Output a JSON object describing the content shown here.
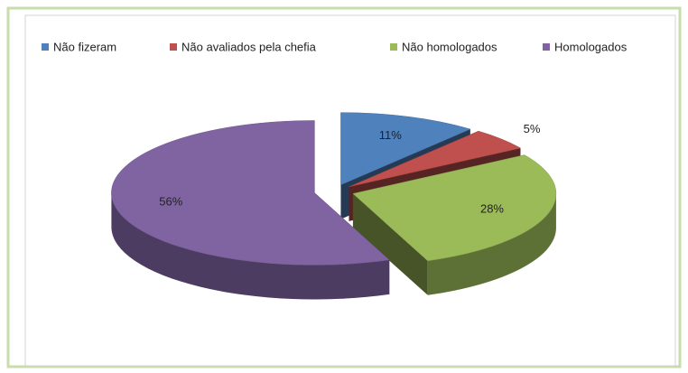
{
  "chart_data": {
    "type": "pie",
    "categories": [
      "Não fizeram",
      "Não avaliados pela chefia",
      "Não homologados",
      "Homologados"
    ],
    "values": [
      11,
      5,
      28,
      56
    ],
    "value_labels": [
      "11%",
      "5%",
      "28%",
      "56%"
    ],
    "colors": [
      "#4f81bd",
      "#c0504d",
      "#9bbb59",
      "#8064a2"
    ],
    "legend": "top"
  }
}
